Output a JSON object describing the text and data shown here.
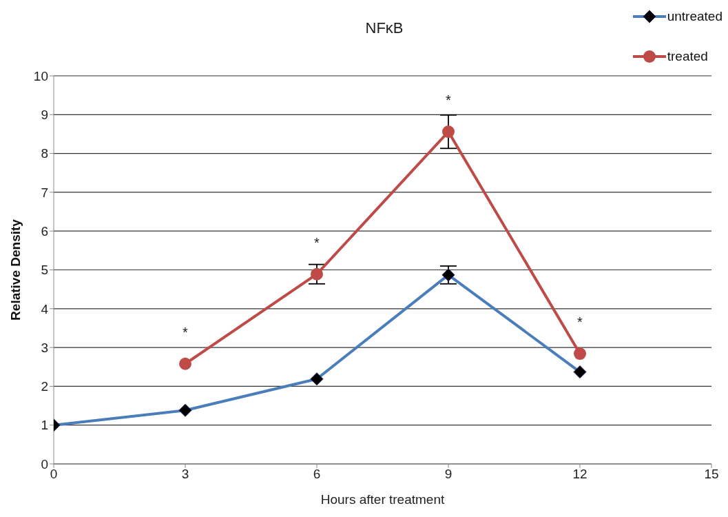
{
  "chart_data": {
    "type": "line",
    "title": "NFκB",
    "xlabel": "Hours after treatment",
    "ylabel": "Relative Density",
    "xlim": [
      0,
      15
    ],
    "xticks": [
      0,
      3,
      6,
      9,
      12,
      15
    ],
    "ylim": [
      0,
      10
    ],
    "yticks": [
      0,
      1,
      2,
      3,
      4,
      5,
      6,
      7,
      8,
      9,
      10
    ],
    "grid": "y",
    "legend": "top right",
    "line_style": "solid",
    "series": [
      {
        "name": "untreated",
        "color": "#4a7ebb",
        "marker": "diamond",
        "x": [
          0,
          3,
          6,
          9,
          12
        ],
        "values": [
          1,
          1.38,
          2.19,
          4.87,
          2.37
        ],
        "errors": [
          null,
          null,
          null,
          0.23,
          null
        ]
      },
      {
        "name": "treated",
        "color": "#be4b48",
        "marker": "circle",
        "x": [
          3,
          6,
          9,
          12
        ],
        "values": [
          2.58,
          4.89,
          8.56,
          2.84
        ],
        "errors": [
          null,
          0.25,
          0.43,
          null
        ]
      }
    ],
    "annotations": [
      {
        "text": "*",
        "x": 3,
        "y": 2.58
      },
      {
        "text": "*",
        "x": 6,
        "y": 4.89
      },
      {
        "text": "*",
        "x": 9,
        "y": 8.56
      },
      {
        "text": "*",
        "x": 12,
        "y": 2.84
      }
    ]
  }
}
